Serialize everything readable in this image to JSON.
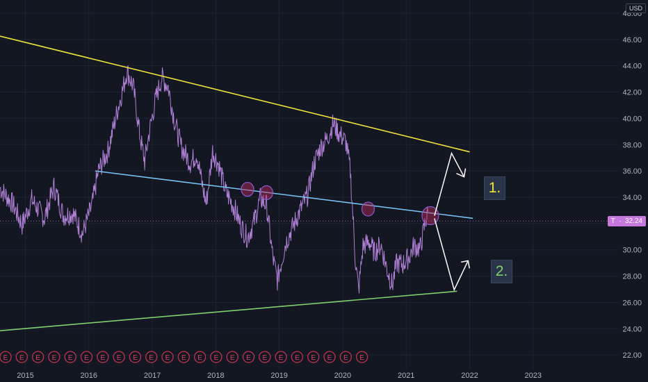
{
  "chart_data": {
    "type": "line",
    "currency": "USD",
    "price_tag": {
      "symbol": "T",
      "value": "32.24"
    },
    "y_ticks": [
      "48.00",
      "46.00",
      "44.00",
      "42.00",
      "40.00",
      "38.00",
      "36.00",
      "34.00",
      "32.00",
      "30.00",
      "28.00",
      "26.00",
      "24.00",
      "22.00"
    ],
    "x_ticks": [
      "2015",
      "2016",
      "2017",
      "2018",
      "2019",
      "2020",
      "2021",
      "2022",
      "2023"
    ],
    "ylim": [
      20.9,
      49.0
    ],
    "xlim": [
      2014.6,
      2024.35
    ],
    "grid": true,
    "series": [
      {
        "color": "#b180d7",
        "anchors": [
          [
            2014.6,
            34.7
          ],
          [
            2014.8,
            33.5
          ],
          [
            2014.95,
            31.9
          ],
          [
            2015.1,
            33.8
          ],
          [
            2015.3,
            32.4
          ],
          [
            2015.45,
            34.8
          ],
          [
            2015.6,
            32.6
          ],
          [
            2015.75,
            32.8
          ],
          [
            2015.9,
            31.2
          ],
          [
            2016.05,
            33.4
          ],
          [
            2016.15,
            36.0
          ],
          [
            2016.3,
            37.5
          ],
          [
            2016.45,
            40.6
          ],
          [
            2016.55,
            42.5
          ],
          [
            2016.6,
            43.6
          ],
          [
            2016.7,
            42.4
          ],
          [
            2016.8,
            38.8
          ],
          [
            2016.88,
            36.7
          ],
          [
            2016.95,
            38.9
          ],
          [
            2017.05,
            41.4
          ],
          [
            2017.15,
            43.1
          ],
          [
            2017.25,
            42.4
          ],
          [
            2017.35,
            39.8
          ],
          [
            2017.45,
            37.9
          ],
          [
            2017.6,
            36.6
          ],
          [
            2017.7,
            37.3
          ],
          [
            2017.8,
            34.6
          ],
          [
            2017.85,
            33.5
          ],
          [
            2017.95,
            37.5
          ],
          [
            2018.05,
            36.4
          ],
          [
            2018.15,
            34.5
          ],
          [
            2018.3,
            33.1
          ],
          [
            2018.4,
            31.8
          ],
          [
            2018.5,
            30.9
          ],
          [
            2018.6,
            32.1
          ],
          [
            2018.7,
            33.9
          ],
          [
            2018.8,
            33.4
          ],
          [
            2018.9,
            29.4
          ],
          [
            2018.97,
            27.7
          ],
          [
            2019.1,
            30.5
          ],
          [
            2019.3,
            32.7
          ],
          [
            2019.45,
            34.2
          ],
          [
            2019.55,
            36.6
          ],
          [
            2019.65,
            37.8
          ],
          [
            2019.75,
            38.4
          ],
          [
            2019.85,
            39.6
          ],
          [
            2019.95,
            38.8
          ],
          [
            2020.05,
            38.2
          ],
          [
            2020.12,
            36.0
          ],
          [
            2020.2,
            29.2
          ],
          [
            2020.25,
            26.9
          ],
          [
            2020.32,
            30.3
          ],
          [
            2020.42,
            30.6
          ],
          [
            2020.5,
            29.8
          ],
          [
            2020.6,
            30.4
          ],
          [
            2020.7,
            28.5
          ],
          [
            2020.78,
            27.3
          ],
          [
            2020.85,
            29.0
          ],
          [
            2020.95,
            28.9
          ],
          [
            2021.05,
            29.5
          ],
          [
            2021.12,
            30.3
          ],
          [
            2021.22,
            30.1
          ],
          [
            2021.3,
            32.1
          ],
          [
            2021.35,
            32.9
          ]
        ]
      }
    ],
    "trendlines": [
      {
        "name": "resistance",
        "color": "#f2e33b",
        "from": [
          2014.6,
          46.25
        ],
        "to": [
          2022.0,
          37.45
        ]
      },
      {
        "name": "midline",
        "color": "#79c2f2",
        "from": [
          2016.1,
          36.0
        ],
        "to": [
          2022.05,
          32.4
        ]
      },
      {
        "name": "support",
        "color": "#7fd16e",
        "from": [
          2014.6,
          23.85
        ],
        "to": [
          2021.8,
          26.85
        ]
      }
    ],
    "touch_points": [
      [
        2018.5,
        34.6
      ],
      [
        2018.8,
        34.35
      ],
      [
        2020.4,
        33.1
      ],
      [
        2021.38,
        32.6
      ]
    ],
    "earnings_count": 23,
    "earnings_marker": "E",
    "scenarios": [
      {
        "label": "1.",
        "color": "#f2e33b"
      },
      {
        "label": "2.",
        "color": "#7fd16e"
      }
    ]
  }
}
